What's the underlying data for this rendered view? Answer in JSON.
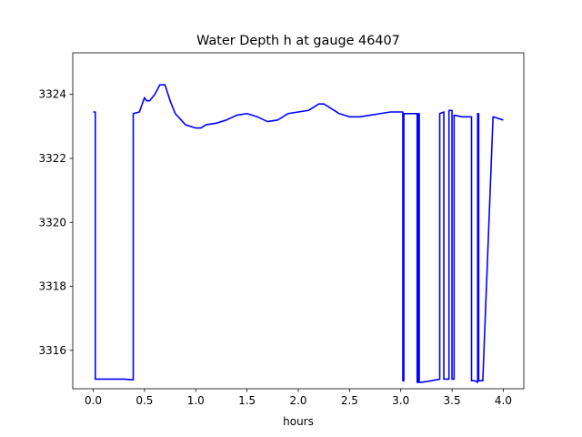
{
  "chart_data": {
    "type": "line",
    "title": "Water Depth h at gauge 46407",
    "xlabel": "hours",
    "ylabel": "",
    "xlim": [
      -0.2,
      4.2
    ],
    "ylim": [
      3314.8,
      3325.3
    ],
    "xticks": [
      0.0,
      0.5,
      1.0,
      1.5,
      2.0,
      2.5,
      3.0,
      3.5,
      4.0
    ],
    "xtick_labels": [
      "0.0",
      "0.5",
      "1.0",
      "1.5",
      "2.0",
      "2.5",
      "3.0",
      "3.5",
      "4.0"
    ],
    "yticks": [
      3316,
      3318,
      3320,
      3322,
      3324
    ],
    "ytick_labels": [
      "3316",
      "3318",
      "3320",
      "3322",
      "3324"
    ],
    "grid": false,
    "series": [
      {
        "color": "#0000ff",
        "x": [
          0.0,
          0.02,
          0.02,
          0.1,
          0.2,
          0.3,
          0.39,
          0.39,
          0.45,
          0.5,
          0.52,
          0.55,
          0.6,
          0.65,
          0.7,
          0.75,
          0.8,
          0.9,
          1.0,
          1.05,
          1.1,
          1.2,
          1.3,
          1.4,
          1.5,
          1.6,
          1.7,
          1.8,
          1.9,
          2.0,
          2.1,
          2.2,
          2.25,
          2.3,
          2.4,
          2.5,
          2.6,
          2.7,
          2.8,
          2.9,
          3.0,
          3.02,
          3.02,
          3.03,
          3.03,
          3.1,
          3.16,
          3.16,
          3.17,
          3.17,
          3.18,
          3.18,
          3.2,
          3.3,
          3.38,
          3.38,
          3.42,
          3.42,
          3.47,
          3.47,
          3.5,
          3.5,
          3.52,
          3.52,
          3.6,
          3.69,
          3.69,
          3.72,
          3.75,
          3.75,
          3.76,
          3.76,
          3.8,
          3.9,
          4.0
        ],
        "y": [
          3323.45,
          3323.45,
          3315.1,
          3315.1,
          3315.1,
          3315.1,
          3315.08,
          3323.4,
          3323.45,
          3323.9,
          3323.8,
          3323.8,
          3324.0,
          3324.3,
          3324.3,
          3323.8,
          3323.4,
          3323.05,
          3322.95,
          3322.95,
          3323.05,
          3323.1,
          3323.2,
          3323.35,
          3323.4,
          3323.3,
          3323.15,
          3323.2,
          3323.4,
          3323.45,
          3323.5,
          3323.7,
          3323.7,
          3323.6,
          3323.4,
          3323.3,
          3323.3,
          3323.35,
          3323.4,
          3323.45,
          3323.45,
          3323.45,
          3315.05,
          3315.05,
          3323.4,
          3323.4,
          3323.4,
          3315.0,
          3315.0,
          3323.4,
          3323.4,
          3315.0,
          3315.0,
          3315.05,
          3315.1,
          3323.4,
          3323.45,
          3315.1,
          3315.1,
          3323.5,
          3323.5,
          3315.1,
          3315.1,
          3323.35,
          3323.3,
          3323.3,
          3315.05,
          3315.05,
          3315.0,
          3323.4,
          3323.4,
          3315.05,
          3315.05,
          3323.3,
          3323.2
        ]
      }
    ]
  }
}
